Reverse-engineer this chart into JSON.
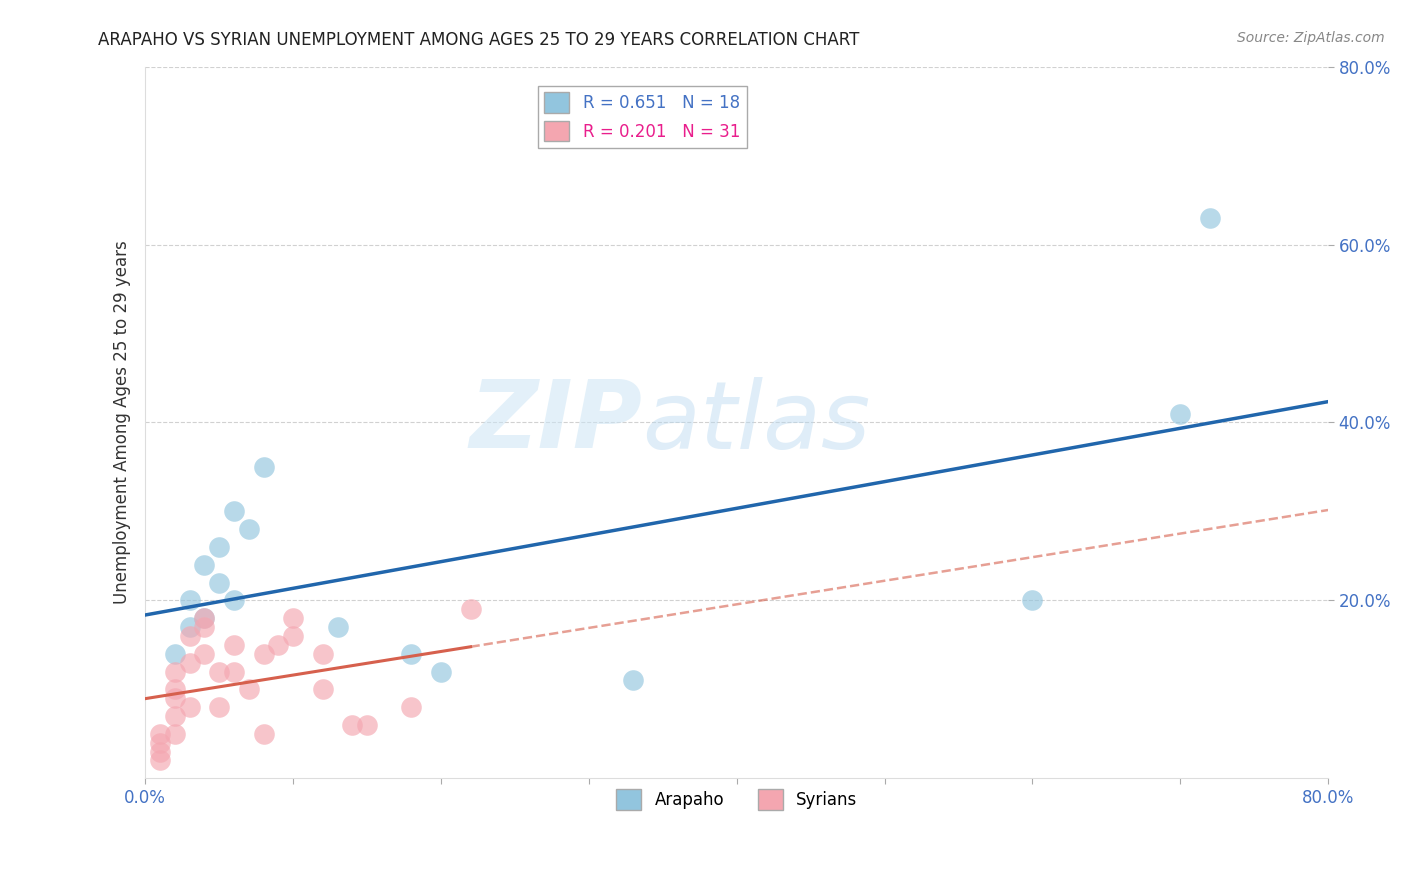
{
  "title": "ARAPAHO VS SYRIAN UNEMPLOYMENT AMONG AGES 25 TO 29 YEARS CORRELATION CHART",
  "source": "Source: ZipAtlas.com",
  "ylabel": "Unemployment Among Ages 25 to 29 years",
  "xlim": [
    0.0,
    0.8
  ],
  "ylim": [
    0.0,
    0.8
  ],
  "xticks": [
    0.0,
    0.1,
    0.2,
    0.3,
    0.4,
    0.5,
    0.6,
    0.7,
    0.8
  ],
  "xtick_labels_show": [
    "0.0%",
    "",
    "",
    "",
    "",
    "",
    "",
    "",
    "80.0%"
  ],
  "yticks": [
    0.2,
    0.4,
    0.6,
    0.8
  ],
  "ytick_labels": [
    "20.0%",
    "40.0%",
    "60.0%",
    "80.0%"
  ],
  "arapaho_color": "#92c5de",
  "syrian_color": "#f4a6b0",
  "arapaho_line_color": "#2166ac",
  "syrian_line_color": "#d6604d",
  "watermark_zip": "ZIP",
  "watermark_atlas": "atlas",
  "legend_R_arapaho": "R = 0.651",
  "legend_N_arapaho": "N = 18",
  "legend_R_syrian": "R = 0.201",
  "legend_N_syrian": "N = 31",
  "arapaho_x": [
    0.02,
    0.03,
    0.03,
    0.04,
    0.04,
    0.05,
    0.05,
    0.06,
    0.06,
    0.07,
    0.08,
    0.13,
    0.18,
    0.2,
    0.33,
    0.6,
    0.7,
    0.72
  ],
  "arapaho_y": [
    0.14,
    0.17,
    0.2,
    0.24,
    0.18,
    0.22,
    0.26,
    0.2,
    0.3,
    0.28,
    0.35,
    0.17,
    0.14,
    0.12,
    0.11,
    0.2,
    0.41,
    0.63
  ],
  "syrian_x": [
    0.01,
    0.01,
    0.01,
    0.01,
    0.02,
    0.02,
    0.02,
    0.02,
    0.02,
    0.03,
    0.03,
    0.03,
    0.04,
    0.04,
    0.04,
    0.05,
    0.05,
    0.06,
    0.06,
    0.07,
    0.08,
    0.08,
    0.09,
    0.1,
    0.1,
    0.12,
    0.12,
    0.14,
    0.15,
    0.18,
    0.22
  ],
  "syrian_y": [
    0.02,
    0.03,
    0.04,
    0.05,
    0.05,
    0.07,
    0.09,
    0.1,
    0.12,
    0.08,
    0.13,
    0.16,
    0.14,
    0.17,
    0.18,
    0.08,
    0.12,
    0.12,
    0.15,
    0.1,
    0.05,
    0.14,
    0.15,
    0.16,
    0.18,
    0.1,
    0.14,
    0.06,
    0.06,
    0.08,
    0.19
  ],
  "background_color": "#ffffff",
  "grid_color": "#cccccc"
}
